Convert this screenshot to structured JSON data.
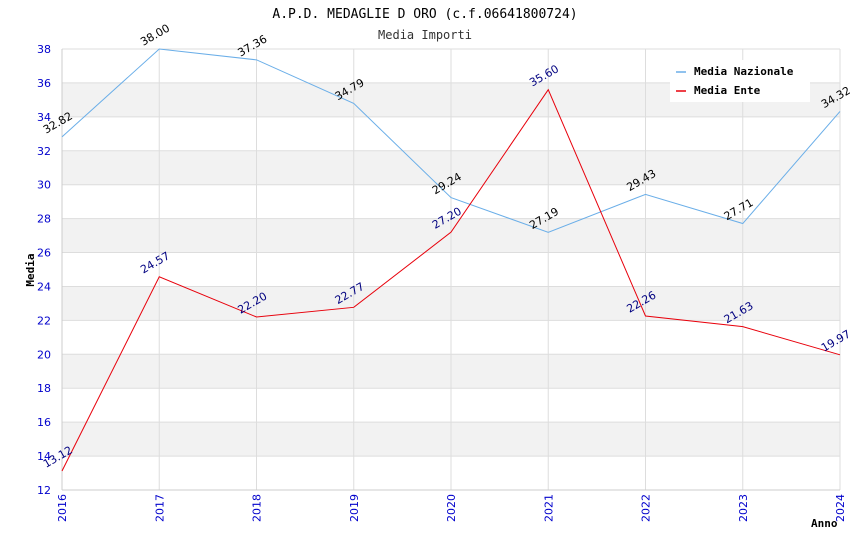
{
  "chart_data": {
    "type": "line",
    "title": "A.P.D. MEDAGLIE D ORO (c.f.06641800724)",
    "subtitle": "Media Importi",
    "xlabel": "Anno",
    "ylabel": "Media",
    "ylim": [
      12,
      38
    ],
    "ytick_step": 2,
    "grid": true,
    "legend_position": "top-right",
    "categories": [
      "2016",
      "2017",
      "2018",
      "2019",
      "2020",
      "2021",
      "2022",
      "2023",
      "2024"
    ],
    "series": [
      {
        "name": "Media Nazionale",
        "color": "#6aaee8",
        "label_color": "#000000",
        "values": [
          32.82,
          38.0,
          37.36,
          34.79,
          29.24,
          27.19,
          29.43,
          27.71,
          34.32
        ],
        "labels": [
          "32.82",
          "38.00",
          "37.36",
          "34.79",
          "29.24",
          "27.19",
          "29.43",
          "27.71",
          "34.32"
        ]
      },
      {
        "name": "Media Ente",
        "color": "#e8000b",
        "label_color": "#000080",
        "values": [
          13.12,
          24.57,
          22.2,
          22.77,
          27.2,
          35.6,
          22.26,
          21.63,
          19.97
        ],
        "labels": [
          "13.12",
          "24.57",
          "22.20",
          "22.77",
          "27.20",
          "35.60",
          "22.26",
          "21.63",
          "19.97"
        ]
      }
    ],
    "colors": {
      "tick_label": "#0000cc",
      "grid_band": "#f2f2f2",
      "grid_line": "#dddddd"
    }
  }
}
